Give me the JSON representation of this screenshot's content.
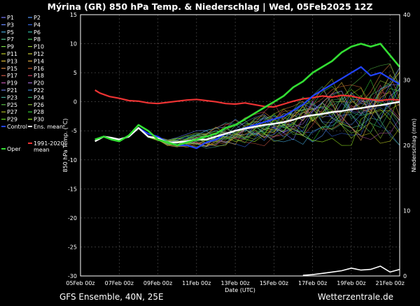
{
  "header": {
    "title": "Mýrina  (GR)  850 hPa Temp. & Niederschlag | Wed, 05Feb2025 12Z"
  },
  "footer": {
    "left": "GFS Ensemble, 40N, 25E",
    "right": "Wetterzentrale.de"
  },
  "colors": {
    "background": "#000000",
    "oper": "#33dd33",
    "ens_mean": "#ffffff",
    "climate_mean": "#ee3333",
    "control": "#2244ff"
  },
  "legend": {
    "members": [
      {
        "label": "P1",
        "color": "#7777ff"
      },
      {
        "label": "P2",
        "color": "#5599ff"
      },
      {
        "label": "P3",
        "color": "#6688ff"
      },
      {
        "label": "P4",
        "color": "#3366dd"
      },
      {
        "label": "P5",
        "color": "#44aadd"
      },
      {
        "label": "P6",
        "color": "#33bbaa"
      },
      {
        "label": "P7",
        "color": "#55cc99"
      },
      {
        "label": "P8",
        "color": "#44cc55"
      },
      {
        "label": "P9",
        "color": "#77dd44"
      },
      {
        "label": "P10",
        "color": "#99cc33"
      },
      {
        "label": "P11",
        "color": "#bbcc22"
      },
      {
        "label": "P12",
        "color": "#cccc33"
      },
      {
        "label": "P13",
        "color": "#ddbb33"
      },
      {
        "label": "P14",
        "color": "#ddaa44"
      },
      {
        "label": "P15",
        "color": "#dd8844"
      },
      {
        "label": "P16",
        "color": "#cc6633"
      },
      {
        "label": "P17",
        "color": "#cc5544"
      },
      {
        "label": "P18",
        "color": "#cc4466"
      },
      {
        "label": "P19",
        "color": "#bb55aa"
      },
      {
        "label": "P20",
        "color": "#9966cc"
      },
      {
        "label": "P21",
        "color": "#6677dd"
      },
      {
        "label": "P22",
        "color": "#4488dd"
      },
      {
        "label": "P23",
        "color": "#44aa99"
      },
      {
        "label": "P24",
        "color": "#33aa66"
      },
      {
        "label": "P25",
        "color": "#55bb44"
      },
      {
        "label": "P26",
        "color": "#88bb33"
      },
      {
        "label": "P27",
        "color": "#aabb22"
      },
      {
        "label": "P28",
        "color": "#33cc33"
      },
      {
        "label": "P29",
        "color": "#66dd22"
      },
      {
        "label": "P30",
        "color": "#99ee22"
      }
    ],
    "control": "Control",
    "ens_mean": "Ens. mean",
    "climate_mean_line1": "1991-2020",
    "climate_mean_line2": "mean",
    "oper": "Oper"
  },
  "chart_data": {
    "type": "line",
    "title": "Mýrina  (GR)  850 hPa Temp. & Niederschlag | Wed, 05Feb2025 12Z",
    "xlabel": "Date (UTC)",
    "ylabel_left": "850 hPa Temp. (°C)",
    "ylabel_right": "Niederschlag (mm)",
    "x_ticks": [
      "05Feb 00z",
      "07Feb 00z",
      "09Feb 00z",
      "11Feb 00z",
      "13Feb 00z",
      "15Feb 00z",
      "17Feb 00z",
      "19Feb 00z",
      "21Feb 00z"
    ],
    "x_range_days": [
      0,
      16.5
    ],
    "ylim_left": [
      -30,
      15
    ],
    "yticks_left": [
      -30,
      -25,
      -20,
      -15,
      -10,
      -5,
      0,
      5,
      10,
      15
    ],
    "ylim_right": [
      0,
      40
    ],
    "yticks_right": [
      0,
      10,
      20,
      30,
      40
    ],
    "grid": true,
    "legend_position": "left-outside",
    "series": [
      {
        "name": "1991-2020 mean",
        "color": "#ee3333",
        "width": 2.2,
        "points": [
          [
            0.75,
            2
          ],
          [
            1.0,
            1.5
          ],
          [
            1.5,
            0.9
          ],
          [
            2,
            0.6
          ],
          [
            2.5,
            0.2
          ],
          [
            3,
            0.1
          ],
          [
            3.5,
            -0.2
          ],
          [
            4,
            -0.3
          ],
          [
            4.5,
            -0.1
          ],
          [
            5,
            0.1
          ],
          [
            5.5,
            0.3
          ],
          [
            6,
            0.4
          ],
          [
            6.5,
            0.2
          ],
          [
            7,
            0
          ],
          [
            7.5,
            -0.3
          ],
          [
            8,
            -0.4
          ],
          [
            8.5,
            -0.2
          ],
          [
            9,
            -0.5
          ],
          [
            9.5,
            -0.8
          ],
          [
            10,
            -0.9
          ],
          [
            10.5,
            -0.4
          ],
          [
            11,
            0.1
          ],
          [
            11.5,
            0.5
          ],
          [
            12,
            0.7
          ],
          [
            12.5,
            1.0
          ],
          [
            13,
            0.8
          ],
          [
            13.5,
            1.1
          ],
          [
            14,
            1.0
          ],
          [
            14.5,
            0.6
          ],
          [
            15,
            0.4
          ],
          [
            15.5,
            0.2
          ],
          [
            16,
            0.4
          ],
          [
            16.5,
            0.3
          ]
        ]
      },
      {
        "name": "Control",
        "color": "#2244ff",
        "width": 2.2,
        "points": [
          [
            0.75,
            -6.5
          ],
          [
            1.2,
            -6
          ],
          [
            1.6,
            -6.3
          ],
          [
            2,
            -6.5
          ],
          [
            2.5,
            -6
          ],
          [
            3,
            -4.5
          ],
          [
            3.5,
            -5.5
          ],
          [
            4,
            -6
          ],
          [
            4.5,
            -7
          ],
          [
            5,
            -7.5
          ],
          [
            5.5,
            -7.5
          ],
          [
            6,
            -8
          ],
          [
            6.5,
            -7
          ],
          [
            7,
            -6.5
          ],
          [
            7.5,
            -5.5
          ],
          [
            8,
            -5
          ],
          [
            8.5,
            -4.5
          ],
          [
            9,
            -4
          ],
          [
            9.5,
            -3.5
          ],
          [
            10,
            -3
          ],
          [
            10.5,
            -2.5
          ],
          [
            11,
            -1.5
          ],
          [
            11.5,
            -0.5
          ],
          [
            12,
            1
          ],
          [
            12.5,
            2
          ],
          [
            13,
            3
          ],
          [
            13.5,
            4
          ],
          [
            14,
            5
          ],
          [
            14.5,
            6
          ],
          [
            15,
            4.5
          ],
          [
            15.5,
            5
          ],
          [
            16,
            4
          ],
          [
            16.5,
            3
          ]
        ]
      },
      {
        "name": "Ens. mean",
        "color": "#ffffff",
        "width": 2.4,
        "points": [
          [
            0.75,
            -6.8
          ],
          [
            1.2,
            -6
          ],
          [
            1.6,
            -6.2
          ],
          [
            2,
            -6.5
          ],
          [
            2.5,
            -6
          ],
          [
            3,
            -4.5
          ],
          [
            3.5,
            -6
          ],
          [
            4,
            -6.3
          ],
          [
            4.5,
            -7
          ],
          [
            5,
            -7
          ],
          [
            5.5,
            -6.8
          ],
          [
            6,
            -6.5
          ],
          [
            6.5,
            -6.5
          ],
          [
            7,
            -6
          ],
          [
            7.5,
            -5.5
          ],
          [
            8,
            -5
          ],
          [
            8.5,
            -4.6
          ],
          [
            9,
            -4.3
          ],
          [
            9.5,
            -4
          ],
          [
            10,
            -3.8
          ],
          [
            10.5,
            -3.5
          ],
          [
            11,
            -3.1
          ],
          [
            11.5,
            -2.6
          ],
          [
            12,
            -2.3
          ],
          [
            12.5,
            -2.1
          ],
          [
            13,
            -1.8
          ],
          [
            13.5,
            -1.6
          ],
          [
            14,
            -1.3
          ],
          [
            14.5,
            -1.1
          ],
          [
            15,
            -0.8
          ],
          [
            15.5,
            -0.6
          ],
          [
            16,
            -0.3
          ],
          [
            16.5,
            0
          ]
        ]
      },
      {
        "name": "Oper",
        "color": "#33dd33",
        "width": 2.6,
        "points": [
          [
            0.75,
            -6.5
          ],
          [
            1.2,
            -6
          ],
          [
            1.6,
            -6.5
          ],
          [
            2,
            -6.8
          ],
          [
            2.5,
            -5.8
          ],
          [
            3,
            -4
          ],
          [
            3.5,
            -5
          ],
          [
            4,
            -6.5
          ],
          [
            4.5,
            -7
          ],
          [
            5,
            -7.5
          ],
          [
            5.5,
            -7
          ],
          [
            6,
            -6.5
          ],
          [
            6.5,
            -6
          ],
          [
            7,
            -5.5
          ],
          [
            7.5,
            -4.5
          ],
          [
            8,
            -4
          ],
          [
            8.5,
            -3
          ],
          [
            9,
            -2
          ],
          [
            9.5,
            -1
          ],
          [
            10,
            0
          ],
          [
            10.5,
            1
          ],
          [
            11,
            2.5
          ],
          [
            11.5,
            3.5
          ],
          [
            12,
            5
          ],
          [
            12.5,
            6
          ],
          [
            13,
            7
          ],
          [
            13.5,
            8.5
          ],
          [
            14,
            9.5
          ],
          [
            14.5,
            10
          ],
          [
            15,
            9.5
          ],
          [
            15.5,
            10
          ],
          [
            16,
            8
          ],
          [
            16.5,
            6
          ]
        ]
      }
    ],
    "precipitation_mm": {
      "x": [
        11.5,
        12.0,
        12.5,
        13.0,
        13.5,
        14.0,
        14.5,
        15.0,
        15.5,
        16.0,
        16.5
      ],
      "ens_mean": [
        0.1,
        0.2,
        0.4,
        0.6,
        0.8,
        1.2,
        0.9,
        1.0,
        1.5,
        0.6,
        1.0
      ]
    }
  }
}
